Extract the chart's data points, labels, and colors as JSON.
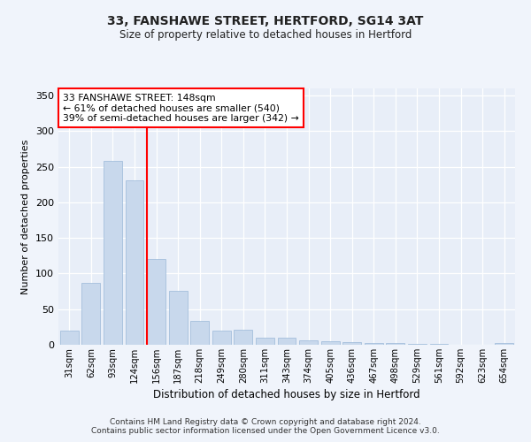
{
  "title1": "33, FANSHAWE STREET, HERTFORD, SG14 3AT",
  "title2": "Size of property relative to detached houses in Hertford",
  "xlabel": "Distribution of detached houses by size in Hertford",
  "ylabel": "Number of detached properties",
  "categories": [
    "31sqm",
    "62sqm",
    "93sqm",
    "124sqm",
    "156sqm",
    "187sqm",
    "218sqm",
    "249sqm",
    "280sqm",
    "311sqm",
    "343sqm",
    "374sqm",
    "405sqm",
    "436sqm",
    "467sqm",
    "498sqm",
    "529sqm",
    "561sqm",
    "592sqm",
    "623sqm",
    "654sqm"
  ],
  "values": [
    20,
    87,
    258,
    231,
    121,
    76,
    33,
    20,
    21,
    10,
    10,
    6,
    5,
    4,
    3,
    2,
    1,
    1,
    0,
    0,
    3
  ],
  "bar_color": "#c8d8ec",
  "bar_edge_color": "#9ab8d8",
  "vline_color": "red",
  "annotation_text": "33 FANSHAWE STREET: 148sqm\n← 61% of detached houses are smaller (540)\n39% of semi-detached houses are larger (342) →",
  "annotation_box_color": "white",
  "annotation_box_edge_color": "red",
  "footnote": "Contains HM Land Registry data © Crown copyright and database right 2024.\nContains public sector information licensed under the Open Government Licence v3.0.",
  "ylim": [
    0,
    360
  ],
  "yticks": [
    0,
    50,
    100,
    150,
    200,
    250,
    300,
    350
  ],
  "bg_color": "#f0f4fb",
  "plot_bg_color": "#e8eef8"
}
